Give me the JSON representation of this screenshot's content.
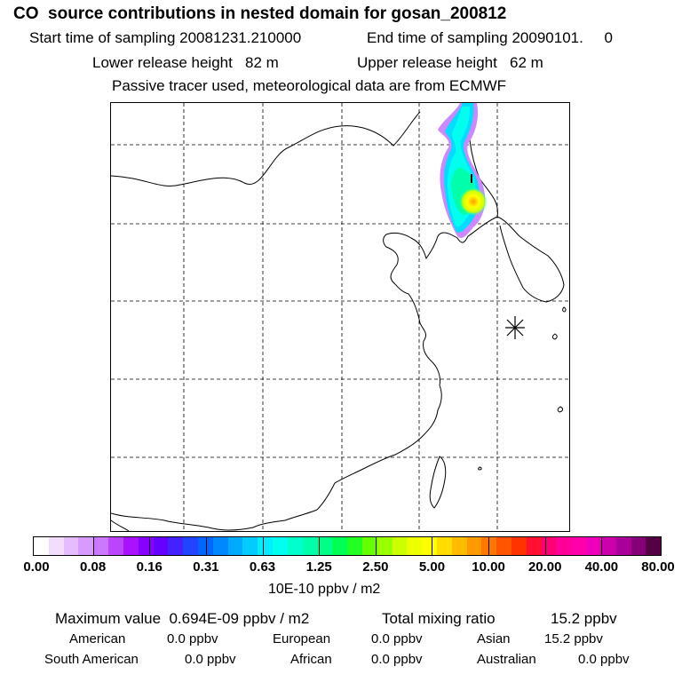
{
  "header": {
    "title": "CO  source contributions in nested domain for gosan_200812",
    "start_label": "Start time of sampling 20081231.210000",
    "end_label": "End time of sampling 20090101.     0",
    "lower_label": "Lower release height   82 m",
    "upper_label": "Upper release height   62 m",
    "tracer_line": "Passive tracer used, meteorological data are from ECMWF"
  },
  "map": {
    "receptor_marker": "asterisk-marker",
    "colors": {
      "plume_low": "#cc88ff",
      "plume_mid": "#00f0e0",
      "plume_high": "#ffff00"
    }
  },
  "colorbar": {
    "unit": "10E-10 ppbv / m2",
    "tick_labels": [
      "0.00",
      "0.08",
      "0.16",
      "0.31",
      "0.63",
      "1.25",
      "2.50",
      "5.00",
      "10.00",
      "20.00",
      "40.00",
      "80.00"
    ],
    "colors": [
      "#ffffff",
      "#f2ddff",
      "#e6bbff",
      "#d99aff",
      "#cc77ff",
      "#bb44ff",
      "#aa11ff",
      "#8800ff",
      "#6600ff",
      "#4422ff",
      "#2244ff",
      "#0066ff",
      "#0088ff",
      "#00aaff",
      "#00ccff",
      "#00eeff",
      "#00ffee",
      "#00ffcc",
      "#00ffaa",
      "#00ff88",
      "#00ff55",
      "#22ff22",
      "#66ff00",
      "#99ff00",
      "#ccff00",
      "#eeff00",
      "#ffff00",
      "#ffdd00",
      "#ffbb00",
      "#ff9900",
      "#ff7700",
      "#ff5500",
      "#ff3300",
      "#ff1133",
      "#ff0077",
      "#ff0099",
      "#ff00aa",
      "#ee00bb",
      "#cc00aa",
      "#aa0099",
      "#880077",
      "#550044"
    ]
  },
  "stats": {
    "max_value": "Maximum value  0.694E-09 ppbv / m2",
    "total_label": "Total mixing ratio",
    "total_value": "15.2 ppbv",
    "regions": [
      {
        "name": "American",
        "value": "0.0 ppbv"
      },
      {
        "name": "European",
        "value": "0.0 ppbv"
      },
      {
        "name": "Asian",
        "value": "15.2 ppbv"
      },
      {
        "name": "South American",
        "value": "0.0 ppbv"
      },
      {
        "name": "African",
        "value": "0.0 ppbv"
      },
      {
        "name": "Australian",
        "value": "0.0 ppbv"
      }
    ]
  }
}
